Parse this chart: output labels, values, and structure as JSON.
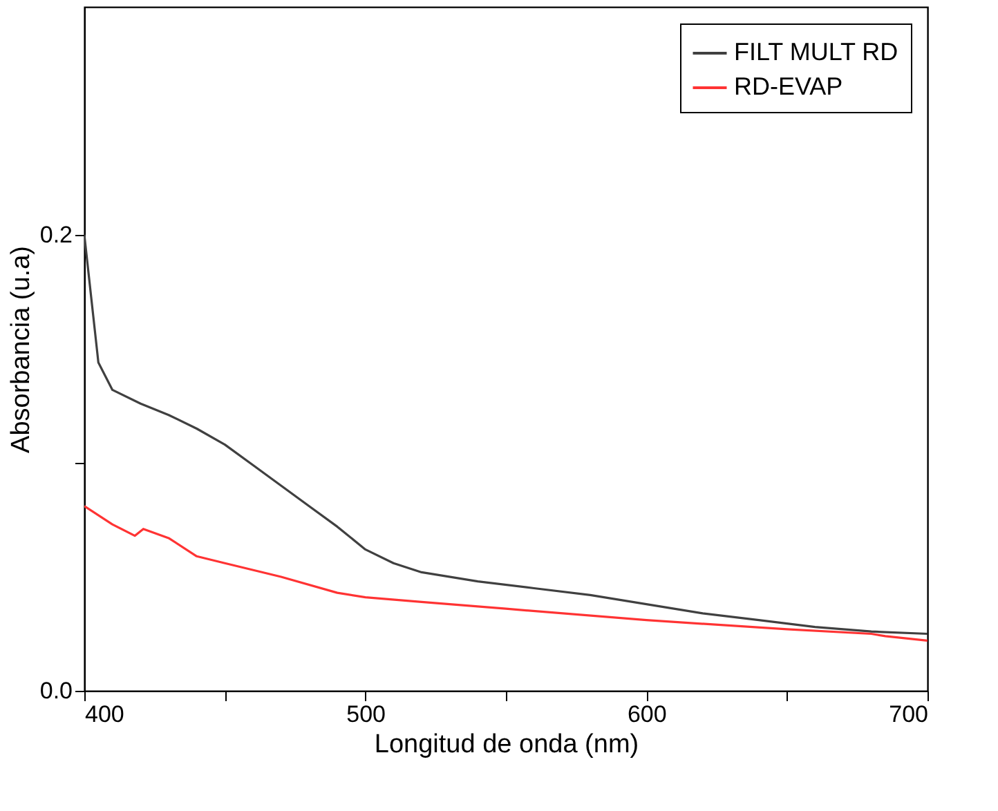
{
  "chart_data": {
    "type": "line",
    "xlabel": "Longitud de onda (nm)",
    "ylabel": "Absorbancia (u.a)",
    "xlim": [
      400,
      700
    ],
    "ylim": [
      0,
      0.3
    ],
    "xticks": [
      400,
      {
        "value": 450,
        "label": null
      },
      500,
      {
        "value": 550,
        "label": null
      },
      600,
      {
        "value": 650,
        "label": null
      },
      700
    ],
    "yticks": [
      {
        "value": 0,
        "label": "0.0"
      },
      {
        "value": 0.1,
        "label": null
      },
      0.2
    ],
    "legend": "top right",
    "grid": false,
    "series": [
      {
        "name": "FILT MULT RD",
        "color": "#404040",
        "x": [
          400,
          405,
          410,
          420,
          430,
          440,
          450,
          460,
          470,
          480,
          490,
          500,
          510,
          520,
          540,
          560,
          580,
          600,
          620,
          640,
          660,
          680,
          700
        ],
        "values": [
          0.2,
          0.144,
          0.132,
          0.126,
          0.121,
          0.115,
          0.108,
          0.099,
          0.09,
          0.081,
          0.072,
          0.062,
          0.056,
          0.052,
          0.048,
          0.045,
          0.042,
          0.038,
          0.034,
          0.031,
          0.028,
          0.026,
          0.025
        ]
      },
      {
        "name": "RD-EVAP",
        "color": "#ff3333",
        "x": [
          400,
          410,
          418,
          420,
          421,
          430,
          440,
          450,
          470,
          490,
          500,
          520,
          550,
          600,
          650,
          680,
          685,
          700
        ],
        "values": [
          0.081,
          0.073,
          0.068,
          0.07,
          0.071,
          0.067,
          0.059,
          0.056,
          0.05,
          0.043,
          0.041,
          0.039,
          0.036,
          0.031,
          0.027,
          0.025,
          0.024,
          0.022
        ]
      }
    ]
  }
}
